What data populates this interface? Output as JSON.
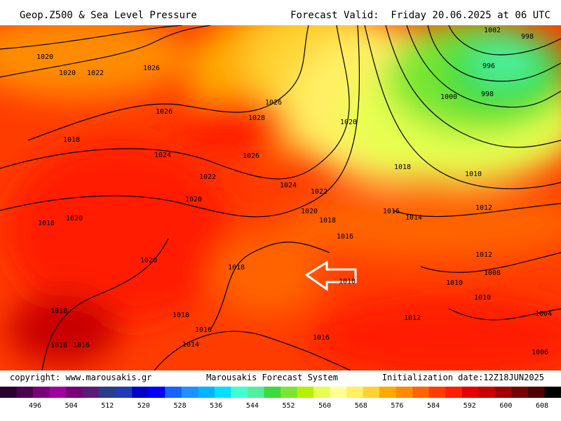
{
  "header": {
    "title": "Geop.Z500 & Sea Level Pressure",
    "valid": "Forecast Valid:  Friday 20.06.2025 at 06 UTC"
  },
  "footer": {
    "copyright": "copyright: www.marousakis.gr",
    "system": "Marousakis Forecast System",
    "init": "Initialization date:12Z18JUN2025"
  },
  "isobar_labels": [
    "1002",
    "998",
    "1020",
    "1020",
    "1022",
    "1026",
    "996",
    "998",
    "1000",
    "1026",
    "1026",
    "1028",
    "1020",
    "1018",
    "1024",
    "1026",
    "1018",
    "1010",
    "1022",
    "1024",
    "1022",
    "1020",
    "1012",
    "1016",
    "1014",
    "1020",
    "1018",
    "1018",
    "1020",
    "1016",
    "1012",
    "1020",
    "1018",
    "1008",
    "1010",
    "1010",
    "1010",
    "1018",
    "1018",
    "1004",
    "1012",
    "1016",
    "1016",
    "1018",
    "1016",
    "1014",
    "1006"
  ],
  "colorbar": {
    "colors": [
      "#2a0030",
      "#4b0050",
      "#7a007a",
      "#a000a0",
      "#780078",
      "#5a1a7a",
      "#283c8c",
      "#1e3cb4",
      "#0000cd",
      "#0000ff",
      "#1464ff",
      "#1e90ff",
      "#00b4ff",
      "#00e1ff",
      "#40ffd0",
      "#50f0a0",
      "#3cdc3c",
      "#78e632",
      "#b4f000",
      "#e6ff50",
      "#ffff96",
      "#fff064",
      "#ffd232",
      "#ffaa00",
      "#ff8c00",
      "#ff6400",
      "#ff3c00",
      "#ff1e00",
      "#e60000",
      "#c80000",
      "#a00000",
      "#780000",
      "#500000",
      "#000000"
    ],
    "ticks": [
      496,
      504,
      512,
      520,
      528,
      536,
      544,
      552,
      560,
      568,
      576,
      584,
      592,
      600,
      608
    ]
  }
}
